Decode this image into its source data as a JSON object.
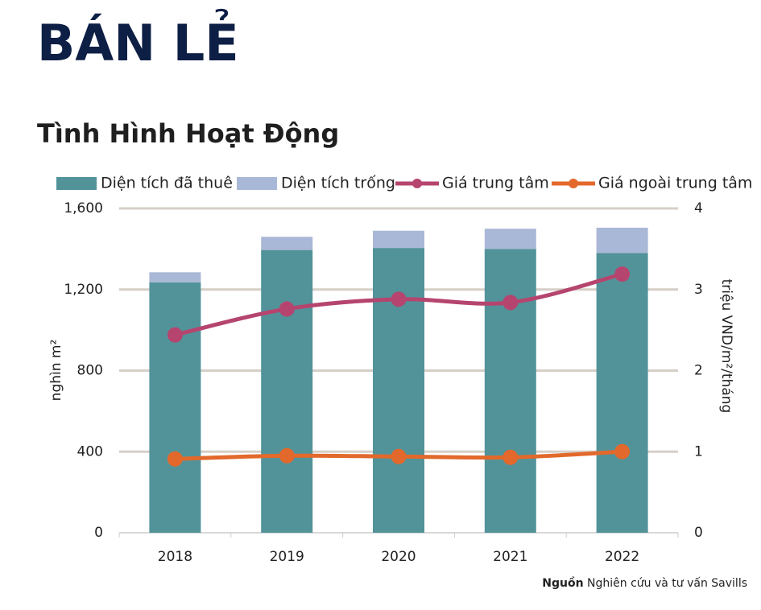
{
  "header": {
    "title": "BÁN LẺ"
  },
  "chart_data": {
    "type": "bar",
    "title": "Tình Hình Hoạt Động",
    "stacked": true,
    "categories": [
      "2018",
      "2019",
      "2020",
      "2021",
      "2022"
    ],
    "series": [
      {
        "name": "Diện tích đã thuê",
        "type": "bar",
        "color": "#52939a",
        "values": [
          1235,
          1395,
          1405,
          1400,
          1380
        ]
      },
      {
        "name": "Diện tích trống",
        "type": "bar",
        "color": "#a9b8d6",
        "values": [
          50,
          65,
          85,
          100,
          125
        ]
      },
      {
        "name": "Giá trung tâm",
        "type": "line",
        "axis": "y2",
        "color": "#b5456e",
        "values": [
          2.44,
          2.76,
          2.88,
          2.84,
          3.19
        ]
      },
      {
        "name": "Giá ngoài trung tâm",
        "type": "line",
        "axis": "y2",
        "color": "#e2692b",
        "values": [
          0.91,
          0.95,
          0.94,
          0.93,
          1.0
        ]
      }
    ],
    "ylabel": "nghìn m²",
    "y2label": "triệu VND/m²/tháng",
    "ylim": [
      0,
      1600
    ],
    "yticks": [
      0,
      400,
      800,
      {
        "value": 1200,
        "label": "1,200"
      },
      {
        "value": 1600,
        "label": "1,600"
      }
    ],
    "y2lim": [
      0,
      4
    ],
    "y2ticks": [
      0,
      1,
      2,
      3,
      4
    ],
    "grid": true,
    "legend": "top",
    "source_label": "Nguồn",
    "source_text": "Nghiên cứu và tư vấn Savills"
  }
}
